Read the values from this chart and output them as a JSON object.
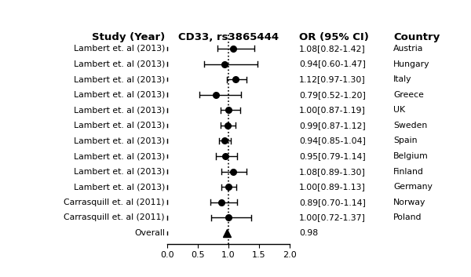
{
  "studies": [
    {
      "label": "Lambert et. al (2013)",
      "or": 1.08,
      "ci_low": 0.82,
      "ci_high": 1.42,
      "or_text": "1.08[0.82-1.42]",
      "country": "Austria"
    },
    {
      "label": "Lambert et. al (2013)",
      "or": 0.94,
      "ci_low": 0.6,
      "ci_high": 1.47,
      "or_text": "0.94[0.60-1.47]",
      "country": "Hungary"
    },
    {
      "label": "Lambert et. al (2013)",
      "or": 1.12,
      "ci_low": 0.97,
      "ci_high": 1.3,
      "or_text": "1.12[0.97-1.30]",
      "country": "Italy"
    },
    {
      "label": "Lambert et. al (2013)",
      "or": 0.79,
      "ci_low": 0.52,
      "ci_high": 1.2,
      "or_text": "0.79[0.52-1.20]",
      "country": "Greece"
    },
    {
      "label": "Lambert et. al (2013)",
      "or": 1.0,
      "ci_low": 0.87,
      "ci_high": 1.19,
      "or_text": "1.00[0.87-1.19]",
      "country": "UK"
    },
    {
      "label": "Lambert et. al (2013)",
      "or": 0.99,
      "ci_low": 0.87,
      "ci_high": 1.12,
      "or_text": "0.99[0.87-1.12]",
      "country": "Sweden"
    },
    {
      "label": "Lambert et. al (2013)",
      "or": 0.94,
      "ci_low": 0.85,
      "ci_high": 1.04,
      "or_text": "0.94[0.85-1.04]",
      "country": "Spain"
    },
    {
      "label": "Lambert et. al (2013)",
      "or": 0.95,
      "ci_low": 0.79,
      "ci_high": 1.14,
      "or_text": "0.95[0.79-1.14]",
      "country": "Belgium"
    },
    {
      "label": "Lambert et. al (2013)",
      "or": 1.08,
      "ci_low": 0.89,
      "ci_high": 1.3,
      "or_text": "1.08[0.89-1.30]",
      "country": "Finland"
    },
    {
      "label": "Lambert et. al (2013)",
      "or": 1.0,
      "ci_low": 0.89,
      "ci_high": 1.13,
      "or_text": "1.00[0.89-1.13]",
      "country": "Germany"
    },
    {
      "label": "Carrasquill et. al (2011)",
      "or": 0.89,
      "ci_low": 0.7,
      "ci_high": 1.14,
      "or_text": "0.89[0.70-1.14]",
      "country": "Norway"
    },
    {
      "label": "Carrasquill et. al (2011)",
      "or": 1.0,
      "ci_low": 0.72,
      "ci_high": 1.37,
      "or_text": "1.00[0.72-1.37]",
      "country": "Poland"
    }
  ],
  "overall_or": 0.98,
  "overall_or_text": "0.98",
  "overall_label": "Overall",
  "title_study": "Study (Year)",
  "title_cd33": "CD33, rs3865444",
  "title_or": "OR (95% CI)",
  "title_country": "Country",
  "xlim": [
    0.0,
    2.0
  ],
  "xticks": [
    0.0,
    0.5,
    1.0,
    1.5,
    2.0
  ],
  "null_line": 1.0,
  "bg_color": "#ffffff",
  "marker_color": "#000000",
  "line_color": "#000000",
  "fontsize_label": 7.8,
  "fontsize_header": 9.5
}
